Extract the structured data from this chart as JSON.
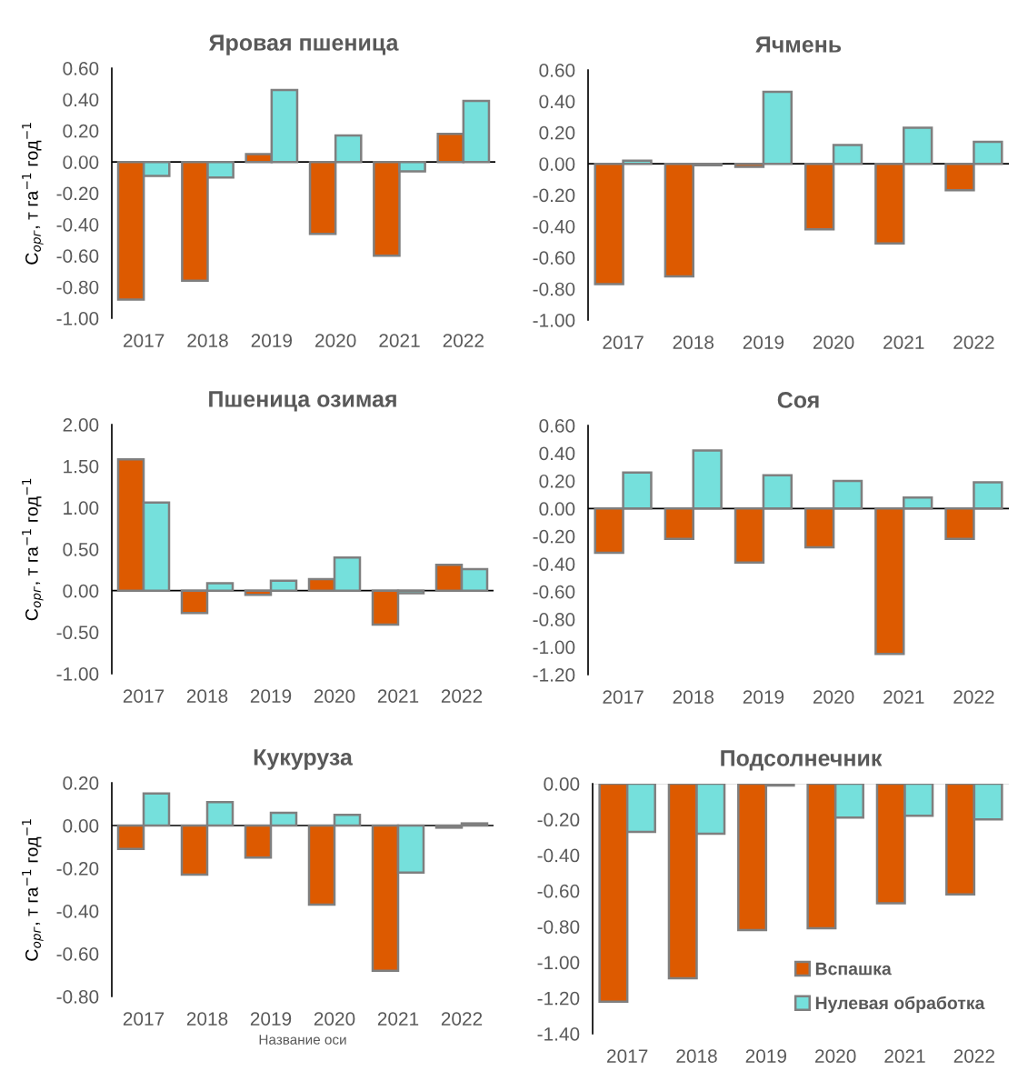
{
  "chart_data": [
    {
      "type": "bar",
      "title": "Яровая пшеница",
      "ylabel": "C$_{орг}$, т га$^{−1}$ год$^{−1}$",
      "categories": [
        "2017",
        "2018",
        "2019",
        "2020",
        "2021",
        "2022"
      ],
      "series": [
        {
          "color": "#dd5a00",
          "values": [
            -0.88,
            -0.76,
            0.05,
            -0.46,
            -0.6,
            0.18
          ]
        },
        {
          "color": "#75e0dc",
          "values": [
            -0.09,
            -0.1,
            0.46,
            0.17,
            -0.06,
            0.39
          ]
        }
      ],
      "ylim": [
        -1.0,
        0.6
      ],
      "yticks": [
        {
          "value": -1.0,
          "label": "-1.00"
        },
        {
          "value": -0.8,
          "label": "-0.80"
        },
        {
          "value": -0.6,
          "label": "-0.60"
        },
        {
          "value": -0.4,
          "label": "-0.40"
        },
        {
          "value": -0.2,
          "label": "-0.20"
        },
        {
          "value": 0.0,
          "label": "0.00"
        },
        {
          "value": 0.2,
          "label": "0.20"
        },
        {
          "value": 0.4,
          "label": "0.40"
        },
        {
          "value": 0.6,
          "label": "0.60"
        }
      ],
      "grid": false,
      "legend": false,
      "ref_lines": [
        {
          "axis": "y",
          "value": 0,
          "color": "#000000"
        }
      ]
    },
    {
      "type": "bar",
      "title": "Ячмень",
      "categories": [
        "2017",
        "2018",
        "2019",
        "2020",
        "2021",
        "2022"
      ],
      "series": [
        {
          "color": "#dd5a00",
          "values": [
            -0.77,
            -0.72,
            -0.02,
            -0.42,
            -0.51,
            -0.17
          ]
        },
        {
          "color": "#75e0dc",
          "values": [
            0.02,
            -0.01,
            0.46,
            0.12,
            0.23,
            0.14
          ]
        }
      ],
      "ylim": [
        -1.0,
        0.6
      ],
      "yticks": [
        {
          "value": -1.0,
          "label": "-1.00"
        },
        {
          "value": -0.8,
          "label": "-0.80"
        },
        {
          "value": -0.6,
          "label": "-0.60"
        },
        {
          "value": -0.4,
          "label": "-0.40"
        },
        {
          "value": -0.2,
          "label": "-0.20"
        },
        {
          "value": 0.0,
          "label": "0.00"
        },
        {
          "value": 0.2,
          "label": "0.20"
        },
        {
          "value": 0.4,
          "label": "0.40"
        },
        {
          "value": 0.6,
          "label": "0.60"
        }
      ],
      "grid": false,
      "legend": false,
      "ref_lines": [
        {
          "axis": "y",
          "value": 0,
          "color": "#000000"
        }
      ]
    },
    {
      "type": "bar",
      "title": "Пшеница озимая",
      "ylabel": "C$_{орг}$, т га$^{−1}$ год$^{−1}$",
      "categories": [
        "2017",
        "2018",
        "2019",
        "2020",
        "2021",
        "2022"
      ],
      "series": [
        {
          "color": "#dd5a00",
          "values": [
            1.58,
            -0.27,
            -0.05,
            0.14,
            -0.41,
            0.31
          ]
        },
        {
          "color": "#75e0dc",
          "values": [
            1.06,
            0.09,
            0.12,
            0.4,
            -0.03,
            0.26
          ]
        }
      ],
      "ylim": [
        -1.0,
        2.0
      ],
      "yticks": [
        {
          "value": -1.0,
          "label": "-1.00"
        },
        {
          "value": -0.5,
          "label": "-0.50"
        },
        {
          "value": 0.0,
          "label": "0.00"
        },
        {
          "value": 0.5,
          "label": "0.50"
        },
        {
          "value": 1.0,
          "label": "1.00"
        },
        {
          "value": 1.5,
          "label": "1.50"
        },
        {
          "value": 2.0,
          "label": "2.00"
        }
      ],
      "grid": false,
      "legend": false,
      "ref_lines": [
        {
          "axis": "y",
          "value": 0,
          "color": "#000000"
        }
      ]
    },
    {
      "type": "bar",
      "title": "Соя",
      "categories": [
        "2017",
        "2018",
        "2019",
        "2020",
        "2021",
        "2022"
      ],
      "series": [
        {
          "color": "#dd5a00",
          "values": [
            -0.32,
            -0.22,
            -0.39,
            -0.28,
            -1.05,
            -0.22
          ]
        },
        {
          "color": "#75e0dc",
          "values": [
            0.26,
            0.42,
            0.24,
            0.2,
            0.08,
            0.19
          ]
        }
      ],
      "ylim": [
        -1.2,
        0.6
      ],
      "yticks": [
        {
          "value": -1.2,
          "label": "-1.20"
        },
        {
          "value": -1.0,
          "label": "-1.00"
        },
        {
          "value": -0.8,
          "label": "-0.80"
        },
        {
          "value": -0.6,
          "label": "-0.60"
        },
        {
          "value": -0.4,
          "label": "-0.40"
        },
        {
          "value": -0.2,
          "label": "-0.20"
        },
        {
          "value": 0.0,
          "label": "0.00"
        },
        {
          "value": 0.2,
          "label": "0.20"
        },
        {
          "value": 0.4,
          "label": "0.40"
        },
        {
          "value": 0.6,
          "label": "0.60"
        }
      ],
      "grid": false,
      "legend": false,
      "ref_lines": [
        {
          "axis": "y",
          "value": 0,
          "color": "#000000"
        }
      ]
    },
    {
      "type": "bar",
      "title": "Кукуруза",
      "ylabel": "C$_{орг}$, т га$^{−1}$ год$^{−1}$",
      "xlabel": "Название оси",
      "categories": [
        "2017",
        "2018",
        "2019",
        "2020",
        "2021",
        "2022"
      ],
      "series": [
        {
          "color": "#dd5a00",
          "values": [
            -0.11,
            -0.23,
            -0.15,
            -0.37,
            -0.68,
            -0.01
          ]
        },
        {
          "color": "#75e0dc",
          "values": [
            0.15,
            0.11,
            0.06,
            0.05,
            -0.22,
            0.01
          ]
        }
      ],
      "ylim": [
        -0.8,
        0.2
      ],
      "yticks": [
        {
          "value": -0.8,
          "label": "-0.80"
        },
        {
          "value": -0.6,
          "label": "-0.60"
        },
        {
          "value": -0.4,
          "label": "-0.40"
        },
        {
          "value": -0.2,
          "label": "-0.20"
        },
        {
          "value": 0.0,
          "label": "0.00"
        },
        {
          "value": 0.2,
          "label": "0.20"
        }
      ],
      "grid": false,
      "legend": false,
      "ref_lines": [
        {
          "axis": "y",
          "value": 0,
          "color": "#000000"
        }
      ]
    },
    {
      "type": "bar",
      "title": "Подсолнечник",
      "categories": [
        "2017",
        "2018",
        "2019",
        "2020",
        "2021",
        "2022"
      ],
      "series": [
        {
          "name": "Вспашка",
          "color": "#dd5a00",
          "values": [
            -1.22,
            -1.09,
            -0.82,
            -0.81,
            -0.67,
            -0.62
          ]
        },
        {
          "name": "Нулевая обработка",
          "color": "#75e0dc",
          "values": [
            -0.27,
            -0.28,
            -0.01,
            -0.19,
            -0.18,
            -0.2
          ]
        }
      ],
      "ylim": [
        -1.4,
        0.0
      ],
      "yticks": [
        {
          "value": -1.4,
          "label": "-1.40"
        },
        {
          "value": -1.2,
          "label": "-1.20"
        },
        {
          "value": -1.0,
          "label": "-1.00"
        },
        {
          "value": -0.8,
          "label": "-0.80"
        },
        {
          "value": -0.6,
          "label": "-0.60"
        },
        {
          "value": -0.4,
          "label": "-0.40"
        },
        {
          "value": -0.2,
          "label": "-0.20"
        },
        {
          "value": 0.0,
          "label": "0.00"
        }
      ],
      "grid": false,
      "legend": "bottom right",
      "ref_lines": [
        {
          "axis": "y",
          "value": 0,
          "color": "#d9d9d9"
        }
      ]
    }
  ]
}
